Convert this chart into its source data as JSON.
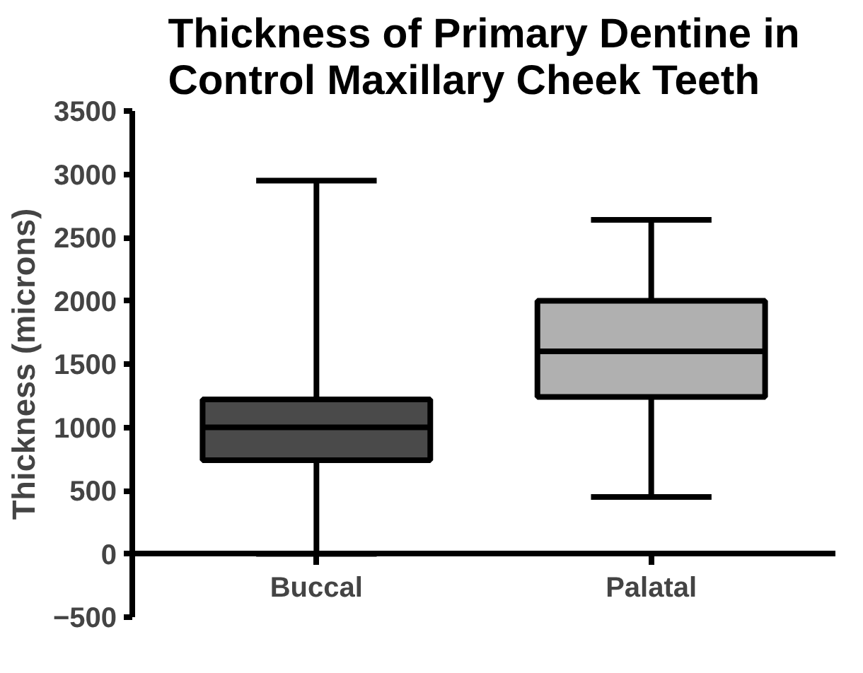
{
  "chart_data": {
    "type": "box",
    "title": "Thickness of Primary Dentine in\nControl Maxillary Cheek Teeth",
    "ylabel": "Thickness (microns)",
    "categories": [
      "Buccal",
      "Palatal"
    ],
    "colors": [
      "#4a4a4a",
      "#b0b0b0"
    ],
    "boxes": [
      {
        "low": 0,
        "q1": 740,
        "median": 1000,
        "q3": 1220,
        "high": 2950
      },
      {
        "low": 450,
        "q1": 1240,
        "median": 1600,
        "q3": 2000,
        "high": 2640
      }
    ],
    "ylim": [
      -500,
      3500
    ],
    "yticks": [
      -500,
      0,
      500,
      1000,
      1500,
      2000,
      2500,
      3000,
      3500
    ],
    "grid": false
  }
}
